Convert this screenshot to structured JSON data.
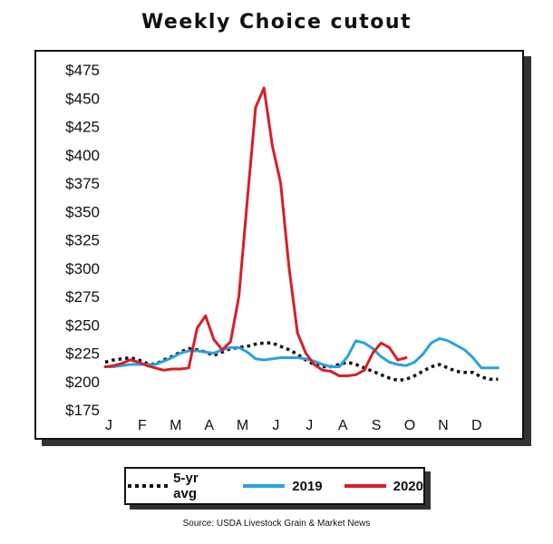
{
  "title": "Weekly Choice cutout",
  "source": "Source: USDA Livestock Grain & Market News",
  "colors": {
    "avg": "#111111",
    "y2019": "#29a3dc",
    "y2020": "#d71f27"
  },
  "chart_data": {
    "type": "line",
    "title": "Weekly Choice cutout",
    "xlabel": "",
    "ylabel": "",
    "ylim": [
      175,
      475
    ],
    "xlim": [
      0,
      12.2
    ],
    "yticks": [
      475,
      450,
      425,
      400,
      375,
      350,
      325,
      300,
      275,
      250,
      225,
      200,
      175
    ],
    "ytick_labels": [
      "$475",
      "$450",
      "$425",
      "$400",
      "$375",
      "$350",
      "$325",
      "$300",
      "$275",
      "$250",
      "$225",
      "$200",
      "$175"
    ],
    "xtick_labels": [
      "J",
      "F",
      "M",
      "A",
      "M",
      "J",
      "J",
      "A",
      "S",
      "O",
      "N",
      "D"
    ],
    "grid": false,
    "legend": "bottom",
    "series": [
      {
        "name": "5-yr avg",
        "style": "dotted",
        "x": [
          0.0,
          0.25,
          0.5,
          0.75,
          1.0,
          1.25,
          1.5,
          1.75,
          2.0,
          2.25,
          2.5,
          2.75,
          3.0,
          3.25,
          3.5,
          3.75,
          4.0,
          4.25,
          4.5,
          4.75,
          5.0,
          5.25,
          5.5,
          5.75,
          6.0,
          6.25,
          6.5,
          6.75,
          7.0,
          7.25,
          7.5,
          7.75,
          8.0,
          8.25,
          8.5,
          8.75,
          9.0,
          9.25,
          9.5,
          9.75,
          10.0,
          10.25,
          10.5,
          10.75,
          11.0,
          11.25,
          11.5,
          11.75
        ],
        "values": [
          217,
          219,
          220,
          221,
          219,
          216,
          215,
          219,
          222,
          226,
          229,
          228,
          226,
          223,
          226,
          229,
          230,
          231,
          233,
          234,
          234,
          231,
          228,
          224,
          219,
          215,
          213,
          213,
          215,
          217,
          215,
          212,
          209,
          206,
          203,
          201,
          202,
          205,
          209,
          213,
          215,
          212,
          209,
          208,
          208,
          204,
          202,
          202
        ]
      },
      {
        "name": "2019",
        "style": "solid",
        "x": [
          0.0,
          0.25,
          0.5,
          0.75,
          1.0,
          1.25,
          1.5,
          1.75,
          2.0,
          2.25,
          2.5,
          2.75,
          3.0,
          3.25,
          3.5,
          3.75,
          4.0,
          4.25,
          4.5,
          4.75,
          5.0,
          5.25,
          5.5,
          5.75,
          6.0,
          6.25,
          6.5,
          6.75,
          7.0,
          7.25,
          7.5,
          7.75,
          8.0,
          8.25,
          8.5,
          8.75,
          9.0,
          9.25,
          9.5,
          9.75,
          10.0,
          10.25,
          10.5,
          10.75,
          11.0,
          11.25,
          11.5,
          11.75
        ],
        "values": [
          213,
          213,
          214,
          215,
          215,
          215,
          215,
          218,
          221,
          225,
          227,
          227,
          226,
          225,
          228,
          230,
          230,
          226,
          220,
          219,
          220,
          221,
          221,
          221,
          220,
          218,
          215,
          213,
          213,
          222,
          236,
          234,
          229,
          222,
          217,
          215,
          214,
          217,
          224,
          234,
          238,
          236,
          232,
          228,
          221,
          212,
          212,
          212
        ]
      },
      {
        "name": "2020",
        "style": "solid",
        "x": [
          0.0,
          0.25,
          0.5,
          0.75,
          1.0,
          1.25,
          1.5,
          1.75,
          2.0,
          2.25,
          2.5,
          2.75,
          3.0,
          3.25,
          3.5,
          3.75,
          4.0,
          4.25,
          4.5,
          4.75,
          5.0,
          5.25,
          5.5,
          5.75,
          6.0,
          6.25,
          6.5,
          6.75,
          7.0,
          7.25,
          7.5,
          7.75,
          8.0,
          8.25,
          8.5,
          8.75,
          9.0
        ],
        "values": [
          213,
          214,
          216,
          219,
          217,
          214,
          212,
          210,
          211,
          211,
          212,
          247,
          258,
          237,
          228,
          235,
          275,
          360,
          442,
          459,
          408,
          375,
          300,
          243,
          225,
          215,
          210,
          209,
          205,
          205,
          206,
          210,
          225,
          234,
          230,
          219,
          221
        ]
      }
    ]
  },
  "legend": {
    "items": [
      {
        "label": "5-yr avg"
      },
      {
        "label": "2019"
      },
      {
        "label": "2020"
      }
    ]
  }
}
